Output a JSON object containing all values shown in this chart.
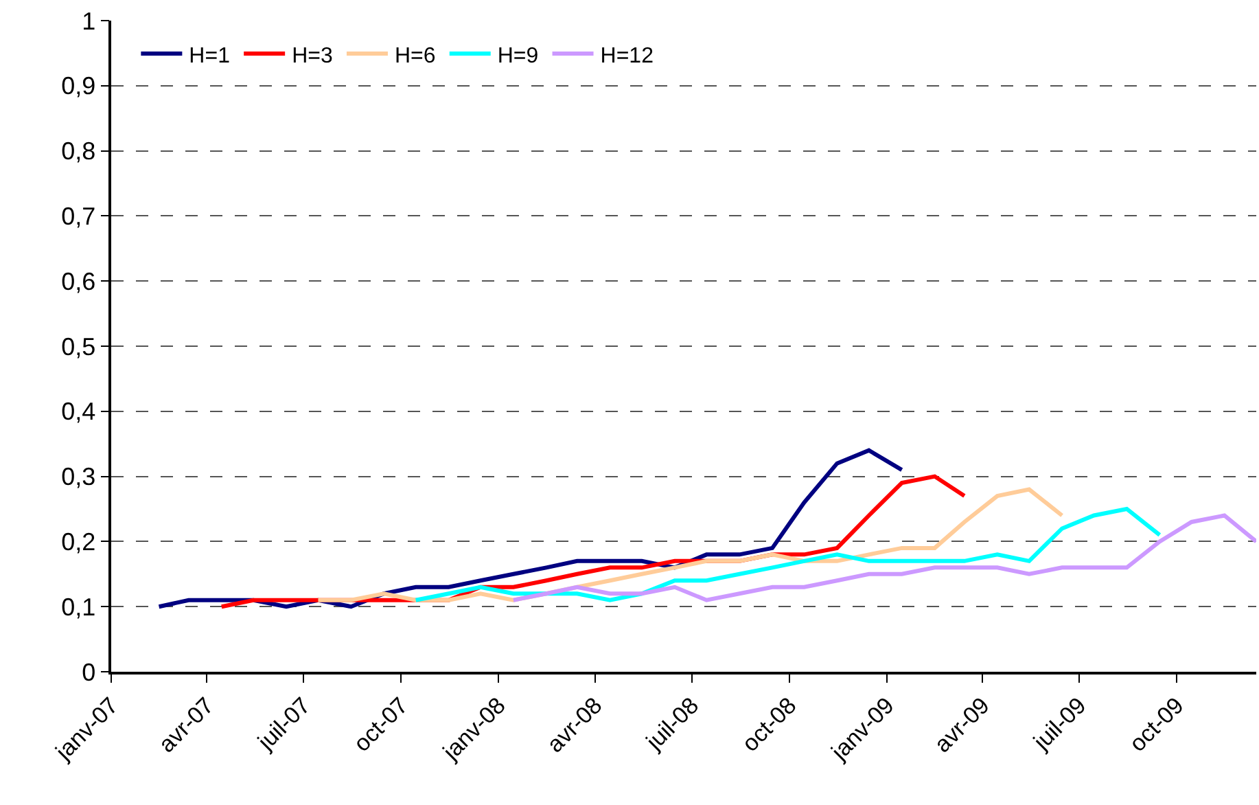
{
  "chart_data": {
    "type": "line",
    "xlim": [
      "2007-01-01",
      "2009-12-15"
    ],
    "xticks": [
      {
        "value": "2007-01-01",
        "label": "janv-07"
      },
      {
        "value": "2007-04-01",
        "label": "avr-07"
      },
      {
        "value": "2007-07-01",
        "label": "juil-07"
      },
      {
        "value": "2007-10-01",
        "label": "oct-07"
      },
      {
        "value": "2008-01-01",
        "label": "janv-08"
      },
      {
        "value": "2008-04-01",
        "label": "avr-08"
      },
      {
        "value": "2008-07-01",
        "label": "juil-08"
      },
      {
        "value": "2008-10-01",
        "label": "oct-08"
      },
      {
        "value": "2009-01-01",
        "label": "janv-09"
      },
      {
        "value": "2009-04-01",
        "label": "avr-09"
      },
      {
        "value": "2009-07-01",
        "label": "juil-09"
      },
      {
        "value": "2009-10-01",
        "label": "oct-09"
      }
    ],
    "ylim": [
      0,
      1
    ],
    "yticks": [
      0,
      {
        "value": 0.1,
        "label": "0,1"
      },
      {
        "value": 0.2,
        "label": "0,2"
      },
      {
        "value": 0.3,
        "label": "0,3"
      },
      {
        "value": 0.4,
        "label": "0,4"
      },
      {
        "value": 0.5,
        "label": "0,5"
      },
      {
        "value": 0.6,
        "label": "0,6"
      },
      {
        "value": 0.7,
        "label": "0,7"
      },
      {
        "value": 0.8,
        "label": "0,8"
      },
      {
        "value": 0.9,
        "label": "0,9"
      },
      1
    ],
    "grid": "y",
    "line_style": "solid",
    "marker": "none",
    "legend": "top left",
    "series": [
      {
        "name": "H=1",
        "color": "#000080",
        "x": [
          "2007-02-15",
          "2007-03-15",
          "2007-04-15",
          "2007-05-15",
          "2007-06-15",
          "2007-07-15",
          "2007-08-15",
          "2007-09-15",
          "2007-10-15",
          "2007-11-15",
          "2007-12-15",
          "2008-01-15",
          "2008-02-15",
          "2008-03-15",
          "2008-04-15",
          "2008-05-15",
          "2008-06-15",
          "2008-07-15",
          "2008-08-15",
          "2008-09-15",
          "2008-10-15",
          "2008-11-15",
          "2008-12-15",
          "2009-01-15"
        ],
        "values": [
          0.1,
          0.11,
          0.11,
          0.11,
          0.1,
          0.11,
          0.1,
          0.12,
          0.13,
          0.13,
          0.14,
          0.15,
          0.16,
          0.17,
          0.17,
          0.17,
          0.16,
          0.18,
          0.18,
          0.19,
          0.26,
          0.32,
          0.34,
          0.31
        ]
      },
      {
        "name": "H=3",
        "color": "#ff0000",
        "x": [
          "2007-04-15",
          "2007-05-15",
          "2007-06-15",
          "2007-07-15",
          "2007-08-15",
          "2007-09-15",
          "2007-10-15",
          "2007-11-15",
          "2007-12-15",
          "2008-01-15",
          "2008-02-15",
          "2008-03-15",
          "2008-04-15",
          "2008-05-15",
          "2008-06-15",
          "2008-07-15",
          "2008-08-15",
          "2008-09-15",
          "2008-10-15",
          "2008-11-15",
          "2008-12-15",
          "2009-01-15",
          "2009-02-15",
          "2009-03-15"
        ],
        "values": [
          0.1,
          0.11,
          0.11,
          0.11,
          0.11,
          0.11,
          0.11,
          0.11,
          0.13,
          0.13,
          0.14,
          0.15,
          0.16,
          0.16,
          0.17,
          0.17,
          0.17,
          0.18,
          0.18,
          0.19,
          0.24,
          0.29,
          0.3,
          0.27
        ]
      },
      {
        "name": "H=6",
        "color": "#ffcc99",
        "x": [
          "2007-07-15",
          "2007-08-15",
          "2007-09-15",
          "2007-10-15",
          "2007-11-15",
          "2007-12-15",
          "2008-01-15",
          "2008-02-15",
          "2008-03-15",
          "2008-04-15",
          "2008-05-15",
          "2008-06-15",
          "2008-07-15",
          "2008-08-15",
          "2008-09-15",
          "2008-10-15",
          "2008-11-15",
          "2008-12-15",
          "2009-01-15",
          "2009-02-15",
          "2009-03-15",
          "2009-04-15",
          "2009-05-15",
          "2009-06-15"
        ],
        "values": [
          0.11,
          0.11,
          0.12,
          0.11,
          0.11,
          0.12,
          0.11,
          0.12,
          0.13,
          0.14,
          0.15,
          0.16,
          0.17,
          0.17,
          0.18,
          0.17,
          0.17,
          0.18,
          0.19,
          0.19,
          0.23,
          0.27,
          0.28,
          0.24
        ]
      },
      {
        "name": "H=9",
        "color": "#00ffff",
        "x": [
          "2007-10-15",
          "2007-11-15",
          "2007-12-15",
          "2008-01-15",
          "2008-02-15",
          "2008-03-15",
          "2008-04-15",
          "2008-05-15",
          "2008-06-15",
          "2008-07-15",
          "2008-08-15",
          "2008-09-15",
          "2008-10-15",
          "2008-11-15",
          "2008-12-15",
          "2009-01-15",
          "2009-02-15",
          "2009-03-15",
          "2009-04-15",
          "2009-05-15",
          "2009-06-15",
          "2009-07-15",
          "2009-08-15",
          "2009-09-15"
        ],
        "values": [
          0.11,
          0.12,
          0.13,
          0.12,
          0.12,
          0.12,
          0.11,
          0.12,
          0.14,
          0.14,
          0.15,
          0.16,
          0.17,
          0.18,
          0.17,
          0.17,
          0.17,
          0.17,
          0.18,
          0.17,
          0.22,
          0.24,
          0.25,
          0.21
        ]
      },
      {
        "name": "H=12",
        "color": "#cc99ff",
        "x": [
          "2008-01-15",
          "2008-02-15",
          "2008-03-15",
          "2008-04-15",
          "2008-05-15",
          "2008-06-15",
          "2008-07-15",
          "2008-08-15",
          "2008-09-15",
          "2008-10-15",
          "2008-11-15",
          "2008-12-15",
          "2009-01-15",
          "2009-02-15",
          "2009-03-15",
          "2009-04-15",
          "2009-05-15",
          "2009-06-15",
          "2009-07-15",
          "2009-08-15",
          "2009-09-15",
          "2009-10-15",
          "2009-11-15",
          "2009-12-15"
        ],
        "values": [
          0.11,
          0.12,
          0.13,
          0.12,
          0.12,
          0.13,
          0.11,
          0.12,
          0.13,
          0.13,
          0.14,
          0.15,
          0.15,
          0.16,
          0.16,
          0.16,
          0.15,
          0.16,
          0.16,
          0.16,
          0.2,
          0.23,
          0.24,
          0.2
        ]
      }
    ]
  }
}
